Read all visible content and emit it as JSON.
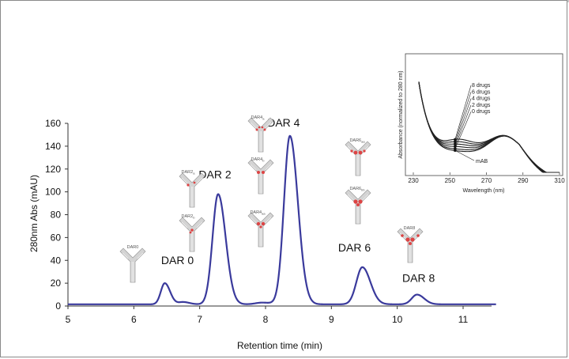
{
  "chart_data": [
    {
      "type": "line",
      "xlabel": "Retention time (min)",
      "ylabel": "280nm Abs (mAU)",
      "xlim": [
        5,
        11.5
      ],
      "ylim": [
        0,
        160
      ],
      "xticks": [
        5,
        6,
        7,
        8,
        9,
        10,
        11
      ],
      "yticks": [
        0,
        20,
        40,
        60,
        80,
        100,
        120,
        140,
        160
      ],
      "line_color": "#3a3a9c",
      "baseline": 1.5,
      "peaks": [
        {
          "label": "DAR 0",
          "x": 6.47,
          "y": 20,
          "width": 0.06
        },
        {
          "label": "DAR 2",
          "x": 7.28,
          "y": 98,
          "width": 0.085
        },
        {
          "label": "DAR 4",
          "x": 8.37,
          "y": 149,
          "width": 0.09
        },
        {
          "label": "DAR 6",
          "x": 9.47,
          "y": 34,
          "width": 0.09
        },
        {
          "label": "DAR 8",
          "x": 10.3,
          "y": 10,
          "width": 0.08
        }
      ],
      "minor_peaks": [
        {
          "x": 6.75,
          "y": 3.5,
          "width": 0.07
        },
        {
          "x": 7.95,
          "y": 3.0,
          "width": 0.1
        }
      ],
      "structure_labels": [
        {
          "text": "DAR0",
          "group": "DAR 0"
        },
        {
          "text": "DAR2",
          "sub": "a",
          "group": "DAR 2"
        },
        {
          "text": "DAR2",
          "sub": "b",
          "group": "DAR 2"
        },
        {
          "text": "DAR4",
          "sub": "a",
          "group": "DAR 4"
        },
        {
          "text": "DAR4",
          "sub": "b",
          "group": "DAR 4"
        },
        {
          "text": "DAR4",
          "sub": "aa",
          "group": "DAR 4"
        },
        {
          "text": "DAR6",
          "sub": "aa",
          "group": "DAR 6"
        },
        {
          "text": "DAR6",
          "sub": "bb",
          "group": "DAR 6"
        },
        {
          "text": "DAR8",
          "group": "DAR 8"
        }
      ]
    },
    {
      "type": "line",
      "xlabel": "Wavelength (nm)",
      "ylabel": "Absorbance (normalized to 280 nm)",
      "xlim": [
        230,
        310
      ],
      "xticks": [
        230,
        250,
        270,
        290,
        310
      ],
      "series": [
        {
          "name": "8 drugs",
          "dip": 0.6
        },
        {
          "name": "6 drugs",
          "dip": 0.52
        },
        {
          "name": "4 drugs",
          "dip": 0.44
        },
        {
          "name": "2 drugs",
          "dip": 0.36
        },
        {
          "name": "0 drugs",
          "dip": 0.28
        },
        {
          "name": "mAB",
          "dip": 0.22
        }
      ]
    }
  ]
}
